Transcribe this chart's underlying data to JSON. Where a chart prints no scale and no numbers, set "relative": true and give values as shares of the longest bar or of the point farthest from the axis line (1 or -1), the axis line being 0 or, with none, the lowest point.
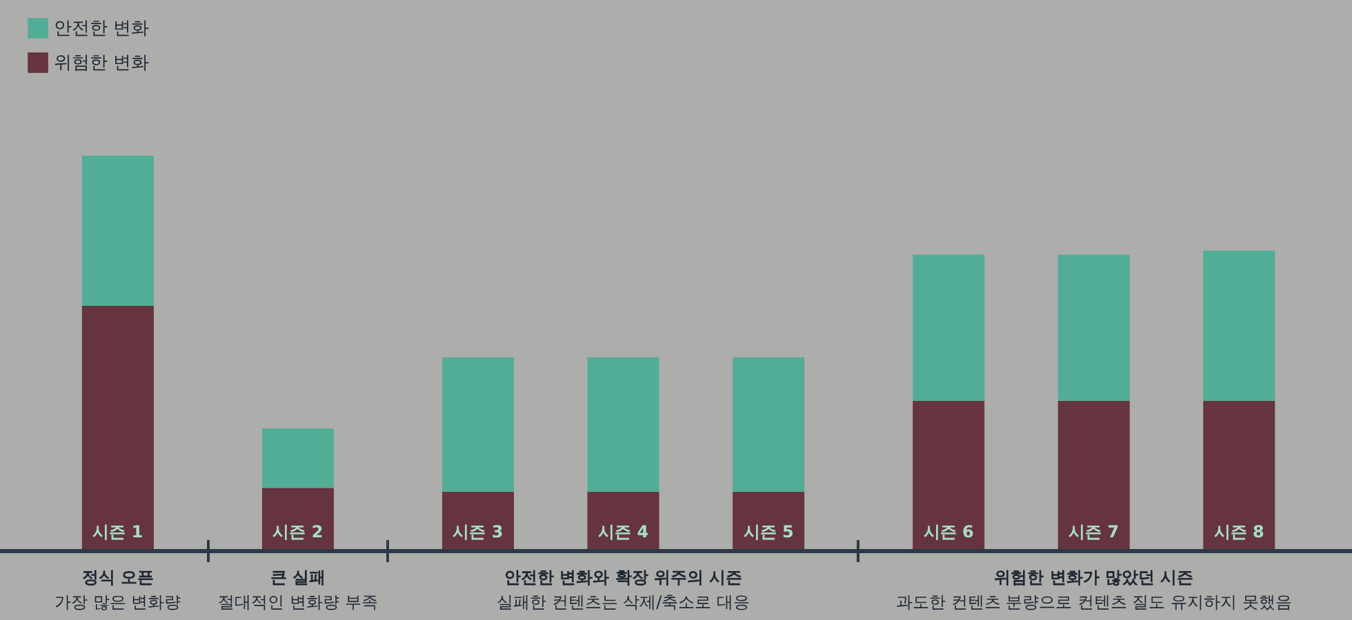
{
  "chart_data": {
    "type": "bar",
    "stacked": true,
    "relative": true,
    "legend": "top left",
    "categories": [
      "시즌 1",
      "시즌 2",
      "시즌 3",
      "시즌 4",
      "시즌 5",
      "시즌 6",
      "시즌 7",
      "시즌 8"
    ],
    "series": [
      {
        "name": "위험한 변화",
        "color": "#66343e",
        "values": [
          0.62,
          0.16,
          0.15,
          0.15,
          0.15,
          0.38,
          0.38,
          0.38
        ]
      },
      {
        "name": "안전한 변화",
        "color": "#52ad96",
        "values": [
          0.38,
          0.15,
          0.34,
          0.34,
          0.34,
          0.37,
          0.37,
          0.38
        ]
      }
    ],
    "annotations": [
      "정식 오픈",
      "가장 많은 변화량",
      "큰 실패",
      "절대적인 변화량 부족",
      "안전한 변화와 확장 위주의 시즌",
      "실패한 컨텐츠는 삭제/축소로 대응",
      "위험한 변화가 많았던 시즌",
      "과도한 컨텐츠 분량으로 컨텐츠 질도 유지하지 못했음"
    ]
  }
}
